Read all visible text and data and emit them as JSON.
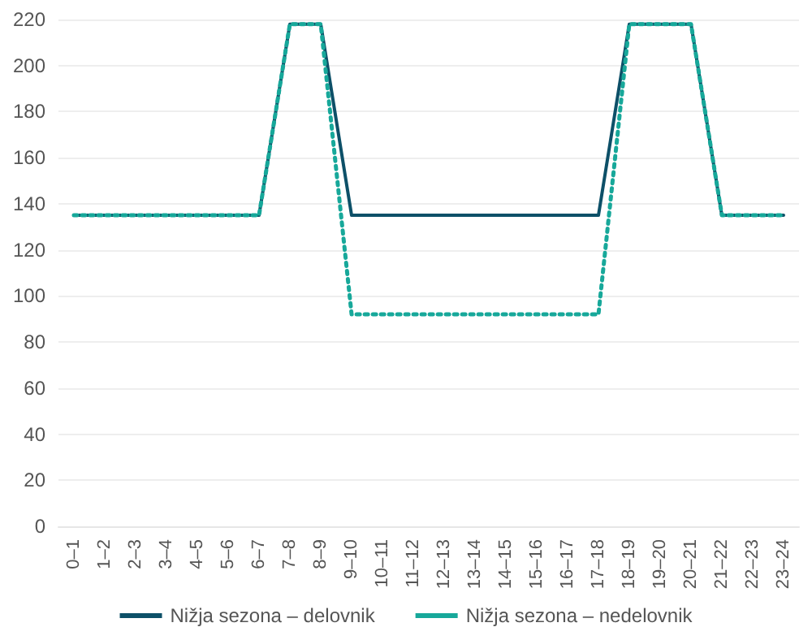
{
  "chart_data": {
    "type": "line",
    "categories": [
      "0–1",
      "1–2",
      "2–3",
      "3–4",
      "4–5",
      "5–6",
      "6–7",
      "7–8",
      "8–9",
      "9–10",
      "10–11",
      "11–12",
      "12–13",
      "13–14",
      "14–15",
      "15–16",
      "16–17",
      "17–18",
      "18–19",
      "19–20",
      "20–21",
      "21–22",
      "22–23",
      "23–24"
    ],
    "series": [
      {
        "name": "Nižja sezona – delovnik",
        "color": "#0d5068",
        "line_style": "solid",
        "values": [
          135,
          135,
          135,
          135,
          135,
          135,
          135,
          218,
          218,
          135,
          135,
          135,
          135,
          135,
          135,
          135,
          135,
          135,
          218,
          218,
          218,
          135,
          135,
          135
        ]
      },
      {
        "name": "Nižja sezona – nedelovnik",
        "color": "#17a89a",
        "line_style": "dotted",
        "values": [
          135,
          135,
          135,
          135,
          135,
          135,
          135,
          218,
          218,
          92,
          92,
          92,
          92,
          92,
          92,
          92,
          92,
          92,
          218,
          218,
          218,
          135,
          135,
          135
        ]
      }
    ],
    "ylim": [
      0,
      220
    ],
    "yticks": [
      0,
      20,
      40,
      60,
      80,
      100,
      120,
      140,
      160,
      180,
      200,
      220
    ],
    "grid": "y",
    "legend": "bottom",
    "marker": "none"
  }
}
